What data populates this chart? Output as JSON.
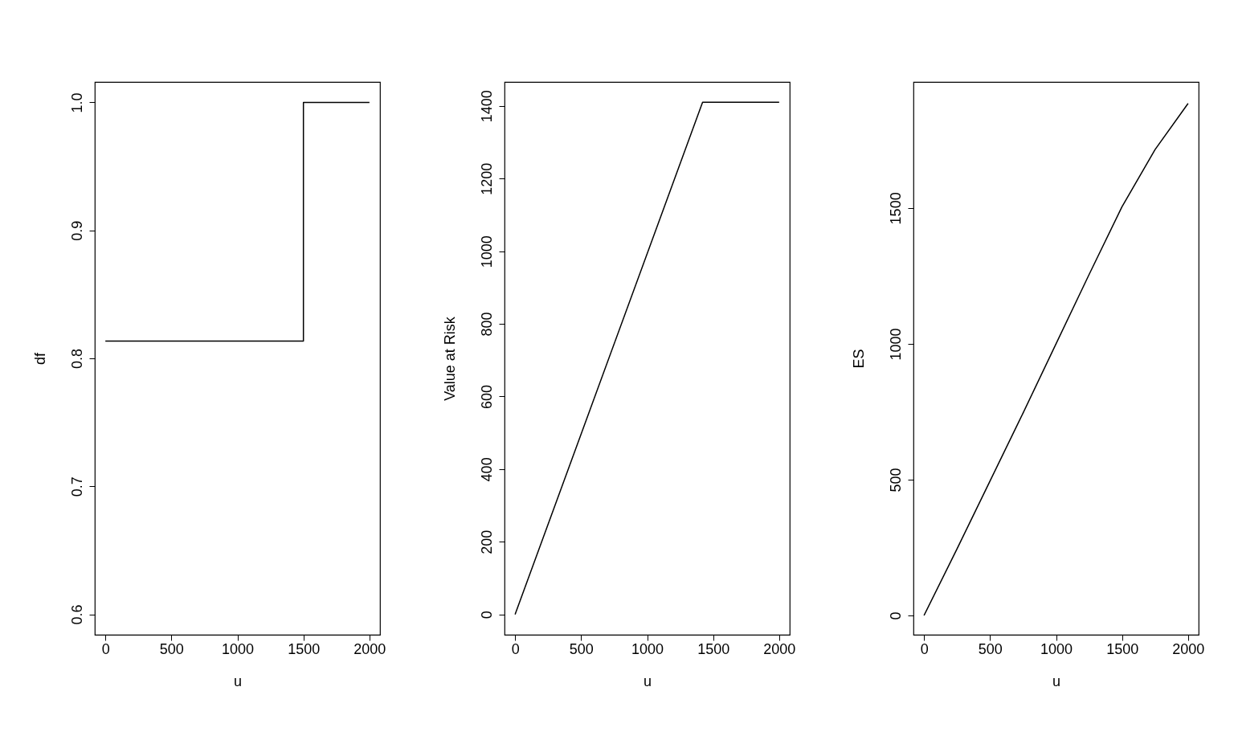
{
  "chart_data": [
    {
      "type": "step",
      "xlabel": "u",
      "ylabel": "df",
      "x": [
        0,
        1500,
        2000
      ],
      "values": [
        0.8135,
        1.0,
        1.0
      ],
      "color": "#000000",
      "xlim": [
        -80,
        2080
      ],
      "xticks": [
        0,
        500,
        1000,
        1500,
        2000
      ],
      "ylim": [
        0.584,
        1.016
      ],
      "yticks": [
        0.6,
        0.7,
        0.8,
        0.9,
        {
          "value": 1,
          "label": "1.0"
        }
      ],
      "grid": false
    },
    {
      "type": "line",
      "xlabel": "u",
      "ylabel": "Value at Risk",
      "x": [
        0,
        1420,
        2000
      ],
      "values": [
        0,
        1410,
        1410
      ],
      "color": "#000000",
      "xlim": [
        -80,
        2080
      ],
      "xticks": [
        0,
        500,
        1000,
        1500,
        2000
      ],
      "ylim": [
        -56,
        1466
      ],
      "yticks": [
        0,
        200,
        400,
        600,
        800,
        1000,
        1200,
        1400
      ],
      "grid": false
    },
    {
      "type": "line",
      "xlabel": "u",
      "ylabel": "ES",
      "x": [
        0,
        250,
        500,
        750,
        1000,
        1250,
        1500,
        1750,
        2000
      ],
      "values": [
        0,
        245,
        495,
        745,
        1000,
        1255,
        1505,
        1715,
        1885
      ],
      "color": "#000000",
      "xlim": [
        -80,
        2080
      ],
      "xticks": [
        0,
        500,
        1000,
        1500,
        2000
      ],
      "ylim": [
        -71,
        1964
      ],
      "yticks": [
        0,
        500,
        1000,
        1500
      ],
      "grid": false
    }
  ]
}
